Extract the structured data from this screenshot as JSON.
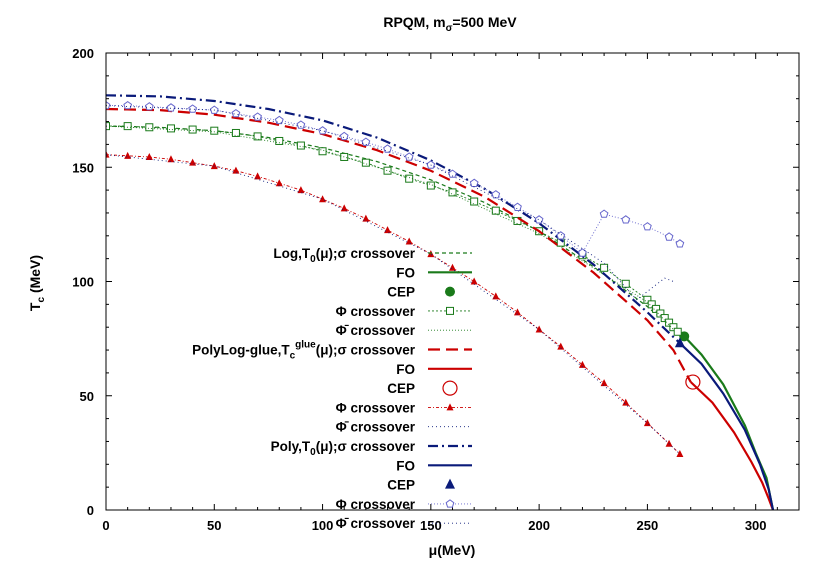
{
  "chart_data": {
    "type": "line",
    "title": "RPQM, m",
    "title_sub": "σ",
    "title_tail": "=500 MeV",
    "xlabel": "μ(MeV)",
    "ylabel_main": "T",
    "ylabel_sub": "c",
    "ylabel_tail": " (MeV)",
    "xlim": [
      0,
      320
    ],
    "ylim": [
      0,
      200
    ],
    "x_ticks": [
      "0",
      "50",
      "100",
      "150",
      "200",
      "250",
      "300"
    ],
    "y_ticks": [
      "0",
      "50",
      "100",
      "150",
      "200"
    ],
    "x_tick_values": [
      0,
      50,
      100,
      150,
      200,
      250,
      300
    ],
    "y_tick_values": [
      0,
      50,
      100,
      150,
      200
    ],
    "legend_position": "left-center",
    "colors": {
      "green": "#1a7a1a",
      "red": "#cc0000",
      "navy": "#0a1a7a",
      "blue_light": "#6666cc"
    },
    "series": [
      {
        "group": 0,
        "name": "crossover",
        "legend_parts": [
          "Log,T",
          "0",
          "(μ);σ crossover"
        ],
        "style": "dashed-green",
        "color": "#1a7a1a",
        "x": [
          0,
          25,
          50,
          75,
          100,
          125,
          150,
          175,
          200,
          225,
          250,
          262
        ],
        "y": [
          168,
          167.5,
          166,
          163,
          158.5,
          152.5,
          144.5,
          134.5,
          122,
          106.5,
          89,
          79
        ]
      },
      {
        "group": 0,
        "name": "FO",
        "legend_parts": [
          "FO"
        ],
        "style": "solid-green",
        "color": "#1a7a1a",
        "x": [
          267,
          275,
          285,
          295,
          300,
          305,
          308
        ],
        "y": [
          76,
          68,
          55,
          37,
          25,
          14,
          0
        ]
      },
      {
        "group": 0,
        "name": "CEP",
        "legend_parts": [
          "CEP"
        ],
        "style": "cep-green-dot",
        "color": "#1a7a1a",
        "x": [
          267
        ],
        "y": [
          76
        ]
      },
      {
        "group": 0,
        "name": "Φ crossover",
        "legend_parts": [
          "Φ crossover"
        ],
        "style": "squares-green",
        "color": "#1a7a1a",
        "x": [
          0,
          10,
          20,
          30,
          40,
          50,
          60,
          70,
          80,
          90,
          100,
          110,
          120,
          130,
          140,
          150,
          160,
          170,
          180,
          190,
          200,
          210,
          220,
          230,
          240,
          250,
          252,
          254,
          256,
          258,
          260,
          262,
          264
        ],
        "y": [
          168,
          168,
          167.5,
          167,
          166.5,
          166,
          165,
          163.5,
          161.5,
          159.5,
          157,
          154.5,
          152,
          148.5,
          145,
          142,
          139,
          135,
          131,
          126.5,
          122,
          117,
          111.5,
          106,
          99,
          92,
          90,
          88,
          86,
          84,
          82,
          80,
          78
        ]
      },
      {
        "group": 0,
        "name": "Φ̄ crossover",
        "legend_parts": [
          "Φ̄ crossover"
        ],
        "style": "dotted-green",
        "color": "#1a7a1a",
        "x": [
          0,
          50,
          100,
          150,
          200,
          250,
          262
        ],
        "y": [
          168,
          165.5,
          157.5,
          142.5,
          121,
          91,
          79
        ]
      },
      {
        "group": 1,
        "name": "crossover",
        "legend_parts": [
          "PolyLog-glue,T",
          "c",
          "glue",
          "(μ);σ crossover"
        ],
        "style": "longdash-red",
        "color": "#cc0000",
        "x": [
          0,
          25,
          50,
          75,
          100,
          125,
          150,
          175,
          200,
          225,
          250,
          262,
          270
        ],
        "y": [
          175.5,
          175,
          173,
          169.5,
          164.5,
          157.5,
          148.5,
          137,
          122,
          104,
          83,
          70,
          56
        ]
      },
      {
        "group": 1,
        "name": "FO",
        "legend_parts": [
          "FO"
        ],
        "style": "solid-red",
        "color": "#cc0000",
        "x": [
          270,
          280,
          290,
          298,
          303,
          306,
          308
        ],
        "y": [
          56,
          47,
          34,
          21,
          12,
          5,
          0
        ]
      },
      {
        "group": 1,
        "name": "CEP",
        "legend_parts": [
          "CEP"
        ],
        "style": "cep-red-circle",
        "color": "#cc0000",
        "x": [
          271
        ],
        "y": [
          56
        ]
      },
      {
        "group": 1,
        "name": "Φ crossover",
        "legend_parts": [
          "Φ crossover"
        ],
        "style": "triangles-red",
        "color": "#cc0000",
        "x": [
          0,
          10,
          20,
          30,
          40,
          50,
          60,
          70,
          80,
          90,
          100,
          110,
          120,
          130,
          140,
          150,
          160,
          170,
          180,
          190,
          200,
          210,
          220,
          230,
          240,
          250,
          260,
          265
        ],
        "y": [
          155.5,
          155,
          154.5,
          153.5,
          152,
          150.5,
          148.5,
          146,
          143,
          140,
          136,
          132,
          127.5,
          122.5,
          117.5,
          112,
          106,
          100,
          93.5,
          86.5,
          79,
          71.5,
          63.5,
          55.5,
          47,
          38,
          29,
          24.5
        ]
      },
      {
        "group": 1,
        "name": "Φ̄ crossover",
        "legend_parts": [
          "Φ̄ crossover"
        ],
        "style": "dotted-red",
        "color": "#cc0000",
        "x": [
          0,
          50,
          100,
          150,
          200,
          250,
          265
        ],
        "y": [
          155.5,
          150.5,
          136,
          112,
          79,
          38,
          24.5
        ]
      },
      {
        "group": 2,
        "name": "crossover",
        "legend_parts": [
          "Poly,T",
          "0",
          "(μ);σ crossover"
        ],
        "style": "dashdot-navy",
        "color": "#0a1a7a",
        "x": [
          0,
          25,
          50,
          75,
          100,
          125,
          150,
          175,
          200,
          225,
          250,
          265
        ],
        "y": [
          181.5,
          181,
          179,
          175.5,
          170.5,
          163,
          153,
          140.5,
          125.5,
          107.5,
          86.5,
          73
        ]
      },
      {
        "group": 2,
        "name": "FO",
        "legend_parts": [
          "FO"
        ],
        "style": "solid-navy",
        "color": "#0a1a7a",
        "x": [
          265,
          275,
          285,
          295,
          302,
          306,
          308
        ],
        "y": [
          73,
          64,
          51,
          35,
          20,
          9,
          0
        ]
      },
      {
        "group": 2,
        "name": "CEP",
        "legend_parts": [
          "CEP"
        ],
        "style": "cep-navy-triangle",
        "color": "#0a1a7a",
        "x": [
          265
        ],
        "y": [
          73
        ]
      },
      {
        "group": 2,
        "name": "Φ crossover",
        "legend_parts": [
          "Φ crossover"
        ],
        "style": "pentagons-blue",
        "color": "#6666cc",
        "x": [
          0,
          10,
          20,
          30,
          40,
          50,
          60,
          70,
          80,
          90,
          100,
          110,
          120,
          130,
          140,
          150,
          160,
          170,
          180,
          190,
          200,
          210,
          220,
          230,
          240,
          250,
          260,
          265
        ],
        "y": [
          177,
          177,
          176.5,
          176,
          175.5,
          175,
          173.5,
          172,
          170.5,
          168.5,
          166,
          163.5,
          161,
          158,
          154.5,
          151,
          147,
          143,
          138,
          132.5,
          127,
          120,
          112.5,
          129.5,
          127,
          124,
          119.5,
          116.5
        ]
      },
      {
        "group": 2,
        "name": "Φ̄ crossover",
        "legend_parts": [
          "Φ̄ crossover"
        ],
        "style": "dotted-navy",
        "color": "#0a1a7a",
        "x": [
          0,
          50,
          100,
          150,
          200,
          230,
          245,
          258,
          262
        ],
        "y": [
          177,
          175,
          166,
          151,
          127,
          108,
          92,
          101.5,
          100
        ]
      }
    ]
  }
}
